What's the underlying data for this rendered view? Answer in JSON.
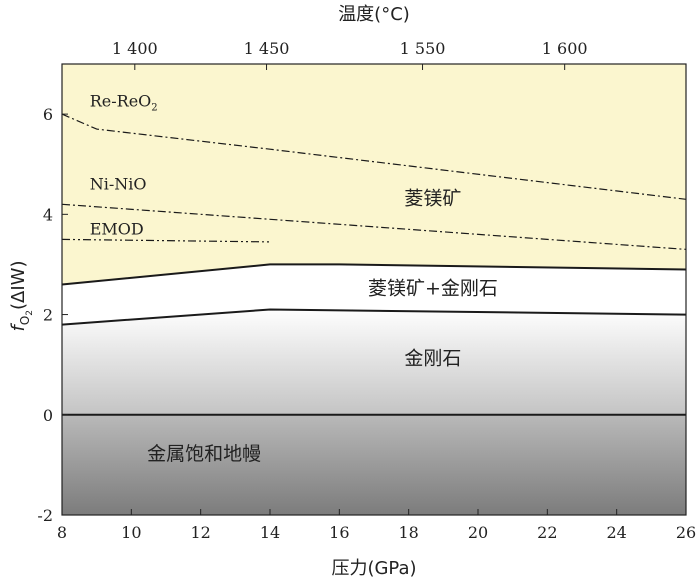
{
  "chart_data": {
    "type": "area",
    "xlabel": "压力(GPa)",
    "x2label": "温度(°C)",
    "xlim": [
      8,
      26
    ],
    "ylim": [
      -2,
      7
    ],
    "x_ticks": [
      8,
      10,
      12,
      14,
      16,
      18,
      20,
      22,
      24,
      26
    ],
    "y_ticks": [
      -2,
      0,
      2,
      4,
      6
    ],
    "x2_ticks": [
      {
        "label": "1 400",
        "pressure": 10.1
      },
      {
        "label": "1 450",
        "pressure": 13.9
      },
      {
        "label": "1 550",
        "pressure": 18.4
      },
      {
        "label": "1 600",
        "pressure": 22.5
      }
    ],
    "ylabel": {
      "italic_part": "f",
      "subscript": "O",
      "sub_subscript": "2",
      "rest": "(ΔIW)"
    },
    "regions": [
      {
        "label": "菱镁矿",
        "color": "#fbf6cf",
        "label_at": [
          18.7,
          4.2
        ]
      },
      {
        "label": "菱镁矿+金刚石",
        "color": "#ffffff",
        "label_at": [
          18.7,
          2.4
        ]
      },
      {
        "label": "金刚石",
        "color_top": "#fefefe",
        "color_bottom": "#c4c4c4",
        "label_at": [
          18.7,
          1.0
        ]
      },
      {
        "label": "金属饱和地幔",
        "color_top": "#b9b9b9",
        "color_bottom": "#7c7c7c",
        "label_at": [
          12.1,
          -0.9
        ]
      }
    ],
    "boundaries": [
      {
        "name": "carbonate-diamond",
        "style": "solid",
        "points": [
          [
            8,
            2.6
          ],
          [
            14,
            3.0
          ],
          [
            16,
            3.0
          ],
          [
            26,
            2.9
          ]
        ]
      },
      {
        "name": "diamond-lower",
        "style": "solid",
        "points": [
          [
            8,
            1.8
          ],
          [
            14,
            2.1
          ],
          [
            26,
            2.0
          ]
        ]
      },
      {
        "name": "metal-saturation",
        "style": "solid",
        "points": [
          [
            8,
            0.0
          ],
          [
            26,
            0.0
          ]
        ]
      },
      {
        "name": "iw-dashed",
        "style": "dashed",
        "points": [
          [
            8,
            0.0
          ],
          [
            17,
            0.0
          ]
        ]
      }
    ],
    "buffers": [
      {
        "name": "Re-ReO₂",
        "label_main": "Re-ReO",
        "label_sub": "2",
        "style": "dashdot",
        "label_at": [
          8.8,
          6.15
        ],
        "points": [
          [
            8,
            6.0
          ],
          [
            9,
            5.7
          ],
          [
            14,
            5.3
          ],
          [
            26,
            4.3
          ]
        ]
      },
      {
        "name": "Ni-NiO",
        "label_main": "Ni-NiO",
        "label_sub": "",
        "style": "dashdot",
        "label_at": [
          8.8,
          4.5
        ],
        "points": [
          [
            8,
            4.2
          ],
          [
            14,
            3.9
          ],
          [
            26,
            3.3
          ]
        ]
      },
      {
        "name": "EMOD",
        "label_main": "EMOD",
        "label_sub": "",
        "style": "dashdotdot",
        "label_at": [
          8.8,
          3.6
        ],
        "points": [
          [
            8,
            3.5
          ],
          [
            14,
            3.45
          ]
        ]
      }
    ]
  }
}
